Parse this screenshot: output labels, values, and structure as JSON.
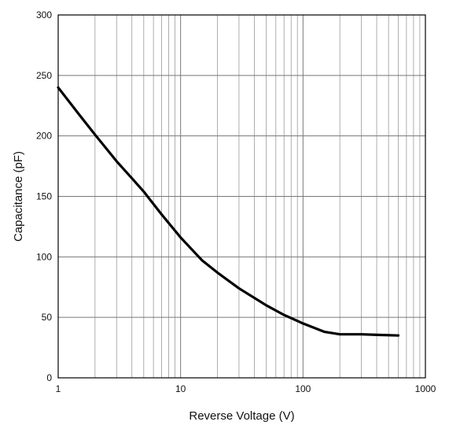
{
  "chart_data": {
    "type": "line",
    "title": "",
    "xlabel": "Reverse Voltage (V)",
    "ylabel": "Capacitance (pF)",
    "x_scale": "log",
    "xlim": [
      1,
      1000
    ],
    "ylim": [
      0,
      300
    ],
    "grid": true,
    "legend": "none",
    "x_ticks": [
      "1",
      "10",
      "100",
      "1000"
    ],
    "y_ticks": [
      "0",
      "50",
      "100",
      "150",
      "200",
      "250",
      "300"
    ],
    "series": [
      {
        "color": "#000000",
        "x": [
          1,
          1.5,
          2,
          3,
          4,
          5,
          7,
          10,
          15,
          20,
          30,
          50,
          70,
          100,
          150,
          200,
          300,
          400,
          600
        ],
        "y": [
          240,
          217,
          201,
          179,
          165,
          154,
          135,
          116,
          97,
          87,
          74,
          60,
          52,
          45,
          38,
          36,
          36,
          35.5,
          35
        ]
      }
    ]
  }
}
